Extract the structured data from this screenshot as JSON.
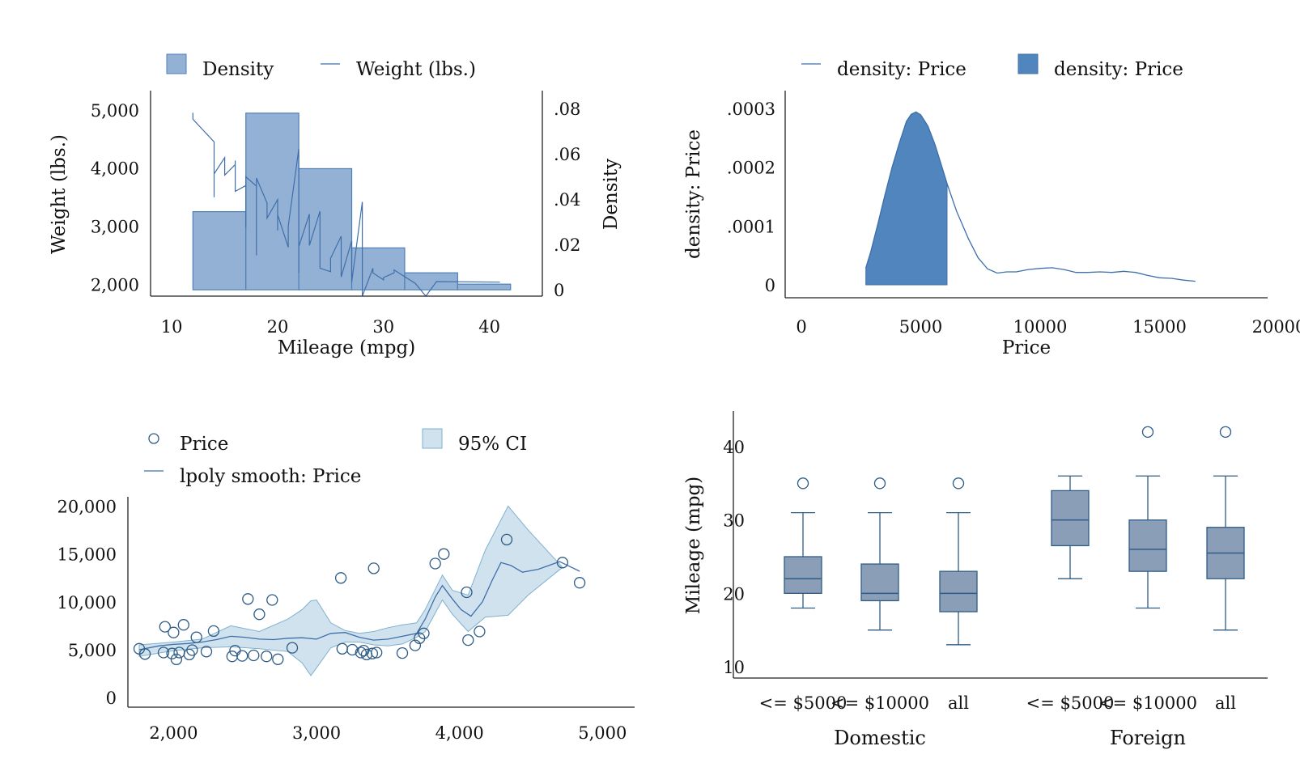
{
  "colors": {
    "hist_fill": "#93b1d4",
    "hist_stroke": "#4f7fb8",
    "line": "#3f6fab",
    "density_fill": "#5185bd",
    "ci_fill": "#cfe2ee",
    "ci_stroke": "#7fb0cf",
    "box_fill": "#8a9fb7",
    "box_stroke": "#2f5c86",
    "axis": "#222222"
  },
  "chart_data": [
    {
      "type": "bar",
      "subtype": "histogram-with-line-overlay",
      "legend": [
        "Density",
        "Weight (lbs.)"
      ],
      "legend_position": "top",
      "xlabel": "Mileage (mpg)",
      "ylabel": "Weight (lbs.)",
      "y2label": "Density",
      "xticks": [
        "10",
        "20",
        "30",
        "40"
      ],
      "yticks": [
        "2,000",
        "3,000",
        "4,000",
        "5,000"
      ],
      "y2ticks": [
        "0",
        ".02",
        ".04",
        ".06",
        ".08"
      ],
      "xlim": [
        8,
        45
      ],
      "ylim": [
        1800,
        5150
      ],
      "y2lim": [
        -0.0028,
        0.0808
      ],
      "bins": [
        {
          "x0": 12,
          "x1": 17,
          "density": 0.0345
        },
        {
          "x0": 17,
          "x1": 22,
          "density": 0.078
        },
        {
          "x0": 22,
          "x1": 27,
          "density": 0.0535
        },
        {
          "x0": 27,
          "x1": 32,
          "density": 0.0185
        },
        {
          "x0": 32,
          "x1": 37,
          "density": 0.0075
        },
        {
          "x0": 37,
          "x1": 42,
          "density": 0.0025
        }
      ],
      "series": [
        {
          "name": "Weight (lbs.)",
          "points": [
            [
              12,
              4950
            ],
            [
              12,
              4840
            ],
            [
              14,
              4450
            ],
            [
              14,
              3500
            ],
            [
              14,
              3900
            ],
            [
              15,
              4180
            ],
            [
              15,
              3880
            ],
            [
              16,
              4060
            ],
            [
              16,
              4130
            ],
            [
              16,
              3600
            ],
            [
              17,
              3700
            ],
            [
              17,
              2980
            ],
            [
              17,
              3850
            ],
            [
              18,
              3690
            ],
            [
              18,
              2500
            ],
            [
              18,
              3830
            ],
            [
              19,
              3400
            ],
            [
              19,
              3200
            ],
            [
              19,
              3140
            ],
            [
              20,
              3460
            ],
            [
              20,
              2930
            ],
            [
              20,
              3200
            ],
            [
              21,
              2640
            ],
            [
              21,
              2830
            ],
            [
              21,
              3000
            ],
            [
              22,
              4330
            ],
            [
              22,
              2200
            ],
            [
              22,
              3180
            ],
            [
              22,
              2650
            ],
            [
              23,
              3210
            ],
            [
              23,
              2670
            ],
            [
              24,
              3260
            ],
            [
              24,
              2280
            ],
            [
              25,
              2220
            ],
            [
              25,
              2410
            ],
            [
              25,
              2450
            ],
            [
              26,
              2830
            ],
            [
              26,
              2740
            ],
            [
              26,
              2130
            ],
            [
              27,
              2750
            ],
            [
              27,
              2040
            ],
            [
              28,
              3420
            ],
            [
              28,
              2160
            ],
            [
              28,
              1800
            ],
            [
              29,
              2280
            ],
            [
              29,
              2200
            ],
            [
              30,
              2080
            ],
            [
              30,
              2120
            ],
            [
              31,
              2200
            ],
            [
              31,
              2250
            ],
            [
              33,
              2020
            ],
            [
              34,
              1800
            ],
            [
              35,
              2050
            ],
            [
              41,
              2040
            ]
          ]
        }
      ]
    },
    {
      "type": "area",
      "subtype": "kernel-density",
      "legend": [
        "density: Price",
        "density: Price"
      ],
      "legend_position": "top",
      "xlabel": "Price",
      "ylabel": "density: Price",
      "xticks": [
        "0",
        "5000",
        "10000",
        "15000",
        "20000"
      ],
      "yticks": [
        "0",
        ".0001",
        ".0002",
        ".0003"
      ],
      "xlim": [
        0,
        20000
      ],
      "ylim": [
        0,
        0.0003
      ],
      "shaded_range": [
        2700,
        6100
      ],
      "series": [
        {
          "name": "density: Price",
          "points": [
            [
              2700,
              2.9e-05
            ],
            [
              2900,
              5.5e-05
            ],
            [
              3200,
              0.000103
            ],
            [
              3500,
              0.000153
            ],
            [
              3800,
              0.0002
            ],
            [
              4100,
              0.000241
            ],
            [
              4400,
              0.000278
            ],
            [
              4600,
              0.00029
            ],
            [
              4800,
              0.000294
            ],
            [
              5000,
              0.000289
            ],
            [
              5300,
              0.00027
            ],
            [
              5600,
              0.000238
            ],
            [
              5900,
              0.000199
            ],
            [
              6100,
              0.000172
            ],
            [
              6500,
              0.000125
            ],
            [
              7000,
              7.8e-05
            ],
            [
              7400,
              4.6e-05
            ],
            [
              7800,
              2.7e-05
            ],
            [
              8200,
              2e-05
            ],
            [
              8600,
              2.2e-05
            ],
            [
              9000,
              2.2e-05
            ],
            [
              9500,
              2.6e-05
            ],
            [
              10000,
              2.8e-05
            ],
            [
              10500,
              2.9e-05
            ],
            [
              11000,
              2.6e-05
            ],
            [
              11500,
              2.1e-05
            ],
            [
              12000,
              2.1e-05
            ],
            [
              12500,
              2.2e-05
            ],
            [
              13000,
              2.1e-05
            ],
            [
              13500,
              2.3e-05
            ],
            [
              14000,
              2.1e-05
            ],
            [
              14500,
              1.6e-05
            ],
            [
              15000,
              1.2e-05
            ],
            [
              15500,
              1.1e-05
            ],
            [
              16000,
              8e-06
            ],
            [
              16500,
              6e-06
            ]
          ]
        }
      ]
    },
    {
      "type": "scatter",
      "subtype": "lpoly-with-ci",
      "legend": [
        "Price",
        "95% CI",
        "lpoly smooth: Price"
      ],
      "legend_position": "top",
      "xticks": [
        "2,000",
        "3,000",
        "4,000",
        "5,000"
      ],
      "yticks": [
        "0",
        "5,000",
        "10,000",
        "15,000",
        "20,000"
      ],
      "xlim": [
        1760,
        5100
      ],
      "ylim": [
        -500,
        20300
      ],
      "series": [
        {
          "name": "Price",
          "points": [
            [
              1760,
              5100
            ],
            [
              1800,
              4550
            ],
            [
              1930,
              4700
            ],
            [
              1940,
              7400
            ],
            [
              1990,
              4600
            ],
            [
              2000,
              6800
            ],
            [
              2020,
              3990
            ],
            [
              2040,
              4700
            ],
            [
              2070,
              7600
            ],
            [
              2110,
              4500
            ],
            [
              2130,
              4950
            ],
            [
              2160,
              6300
            ],
            [
              2230,
              4800
            ],
            [
              2280,
              6950
            ],
            [
              2410,
              4300
            ],
            [
              2430,
              4900
            ],
            [
              2480,
              4350
            ],
            [
              2520,
              10300
            ],
            [
              2560,
              4400
            ],
            [
              2600,
              8700
            ],
            [
              2650,
              4300
            ],
            [
              2690,
              10200
            ],
            [
              2730,
              4000
            ],
            [
              2830,
              5200
            ],
            [
              3170,
              12500
            ],
            [
              3180,
              5100
            ],
            [
              3250,
              5000
            ],
            [
              3310,
              4700
            ],
            [
              3330,
              4900
            ],
            [
              3350,
              4500
            ],
            [
              3390,
              4600
            ],
            [
              3400,
              13500
            ],
            [
              3420,
              4700
            ],
            [
              3600,
              4650
            ],
            [
              3690,
              5450
            ],
            [
              3720,
              6200
            ],
            [
              3750,
              6700
            ],
            [
              3830,
              14000
            ],
            [
              3890,
              15000
            ],
            [
              4050,
              11000
            ],
            [
              4060,
              6000
            ],
            [
              4140,
              6900
            ],
            [
              4330,
              16500
            ],
            [
              4720,
              14100
            ],
            [
              4840,
              12000
            ]
          ]
        },
        {
          "name": "lpoly smooth: Price",
          "points": [
            [
              1760,
              5000
            ],
            [
              1900,
              5400
            ],
            [
              2000,
              5550
            ],
            [
              2100,
              5650
            ],
            [
              2200,
              5800
            ],
            [
              2300,
              6050
            ],
            [
              2400,
              6400
            ],
            [
              2500,
              6300
            ],
            [
              2600,
              6100
            ],
            [
              2700,
              6050
            ],
            [
              2800,
              6200
            ],
            [
              2900,
              6250
            ],
            [
              3000,
              6100
            ],
            [
              3100,
              6700
            ],
            [
              3200,
              6800
            ],
            [
              3300,
              6300
            ],
            [
              3400,
              6000
            ],
            [
              3500,
              6100
            ],
            [
              3600,
              6400
            ],
            [
              3700,
              6700
            ],
            [
              3760,
              8200
            ],
            [
              3830,
              10500
            ],
            [
              3880,
              11700
            ],
            [
              3950,
              10300
            ],
            [
              4010,
              9200
            ],
            [
              4080,
              8500
            ],
            [
              4160,
              10000
            ],
            [
              4230,
              12300
            ],
            [
              4290,
              14100
            ],
            [
              4360,
              13800
            ],
            [
              4440,
              13100
            ],
            [
              4550,
              13400
            ],
            [
              4700,
              14200
            ],
            [
              4840,
              13200
            ]
          ]
        }
      ],
      "ci_band": {
        "name": "95% CI",
        "x": [
          1760,
          2000,
          2200,
          2400,
          2600,
          2800,
          2900,
          2960,
          3000,
          3100,
          3200,
          3300,
          3400,
          3500,
          3600,
          3700,
          3760,
          3880,
          3950,
          4060,
          4180,
          4340,
          4480,
          4720
        ],
        "upper": [
          5500,
          5800,
          6100,
          7500,
          6900,
          8200,
          9200,
          10100,
          10200,
          7800,
          7000,
          6700,
          6900,
          7300,
          7600,
          7800,
          9200,
          12800,
          11200,
          10700,
          15400,
          20000,
          17500,
          13600
        ],
        "lower": [
          4300,
          4900,
          5200,
          5300,
          5100,
          4800,
          3600,
          2300,
          3100,
          5200,
          5800,
          5800,
          5500,
          5400,
          5600,
          6300,
          6900,
          10200,
          8700,
          6900,
          8400,
          8600,
          10700,
          13600
        ]
      }
    },
    {
      "type": "box",
      "ylabel": "Mileage (mpg)",
      "yticks": [
        "10",
        "20",
        "30",
        "40"
      ],
      "ylim": [
        8,
        45
      ],
      "groups": [
        {
          "label": "Domestic",
          "boxes": [
            {
              "label": "<= $5000",
              "min": 18,
              "q1": 20,
              "median": 22,
              "q3": 25,
              "max": 31,
              "outliers": [
                35
              ]
            },
            {
              "label": "<= $10000",
              "min": 15,
              "q1": 19,
              "median": 20,
              "q3": 24,
              "max": 31,
              "outliers": [
                35
              ]
            },
            {
              "label": "all",
              "min": 13,
              "q1": 17.5,
              "median": 20,
              "q3": 23,
              "max": 31,
              "outliers": [
                35
              ]
            }
          ]
        },
        {
          "label": "Foreign",
          "boxes": [
            {
              "label": "<= $5000",
              "min": 22,
              "q1": 26.5,
              "median": 30,
              "q3": 34,
              "max": 36,
              "outliers": []
            },
            {
              "label": "<= $10000",
              "min": 18,
              "q1": 23,
              "median": 26,
              "q3": 30,
              "max": 36,
              "outliers": [
                42
              ]
            },
            {
              "label": "all",
              "min": 15,
              "q1": 22,
              "median": 25.5,
              "q3": 29,
              "max": 36,
              "outliers": [
                42
              ]
            }
          ]
        }
      ]
    }
  ]
}
